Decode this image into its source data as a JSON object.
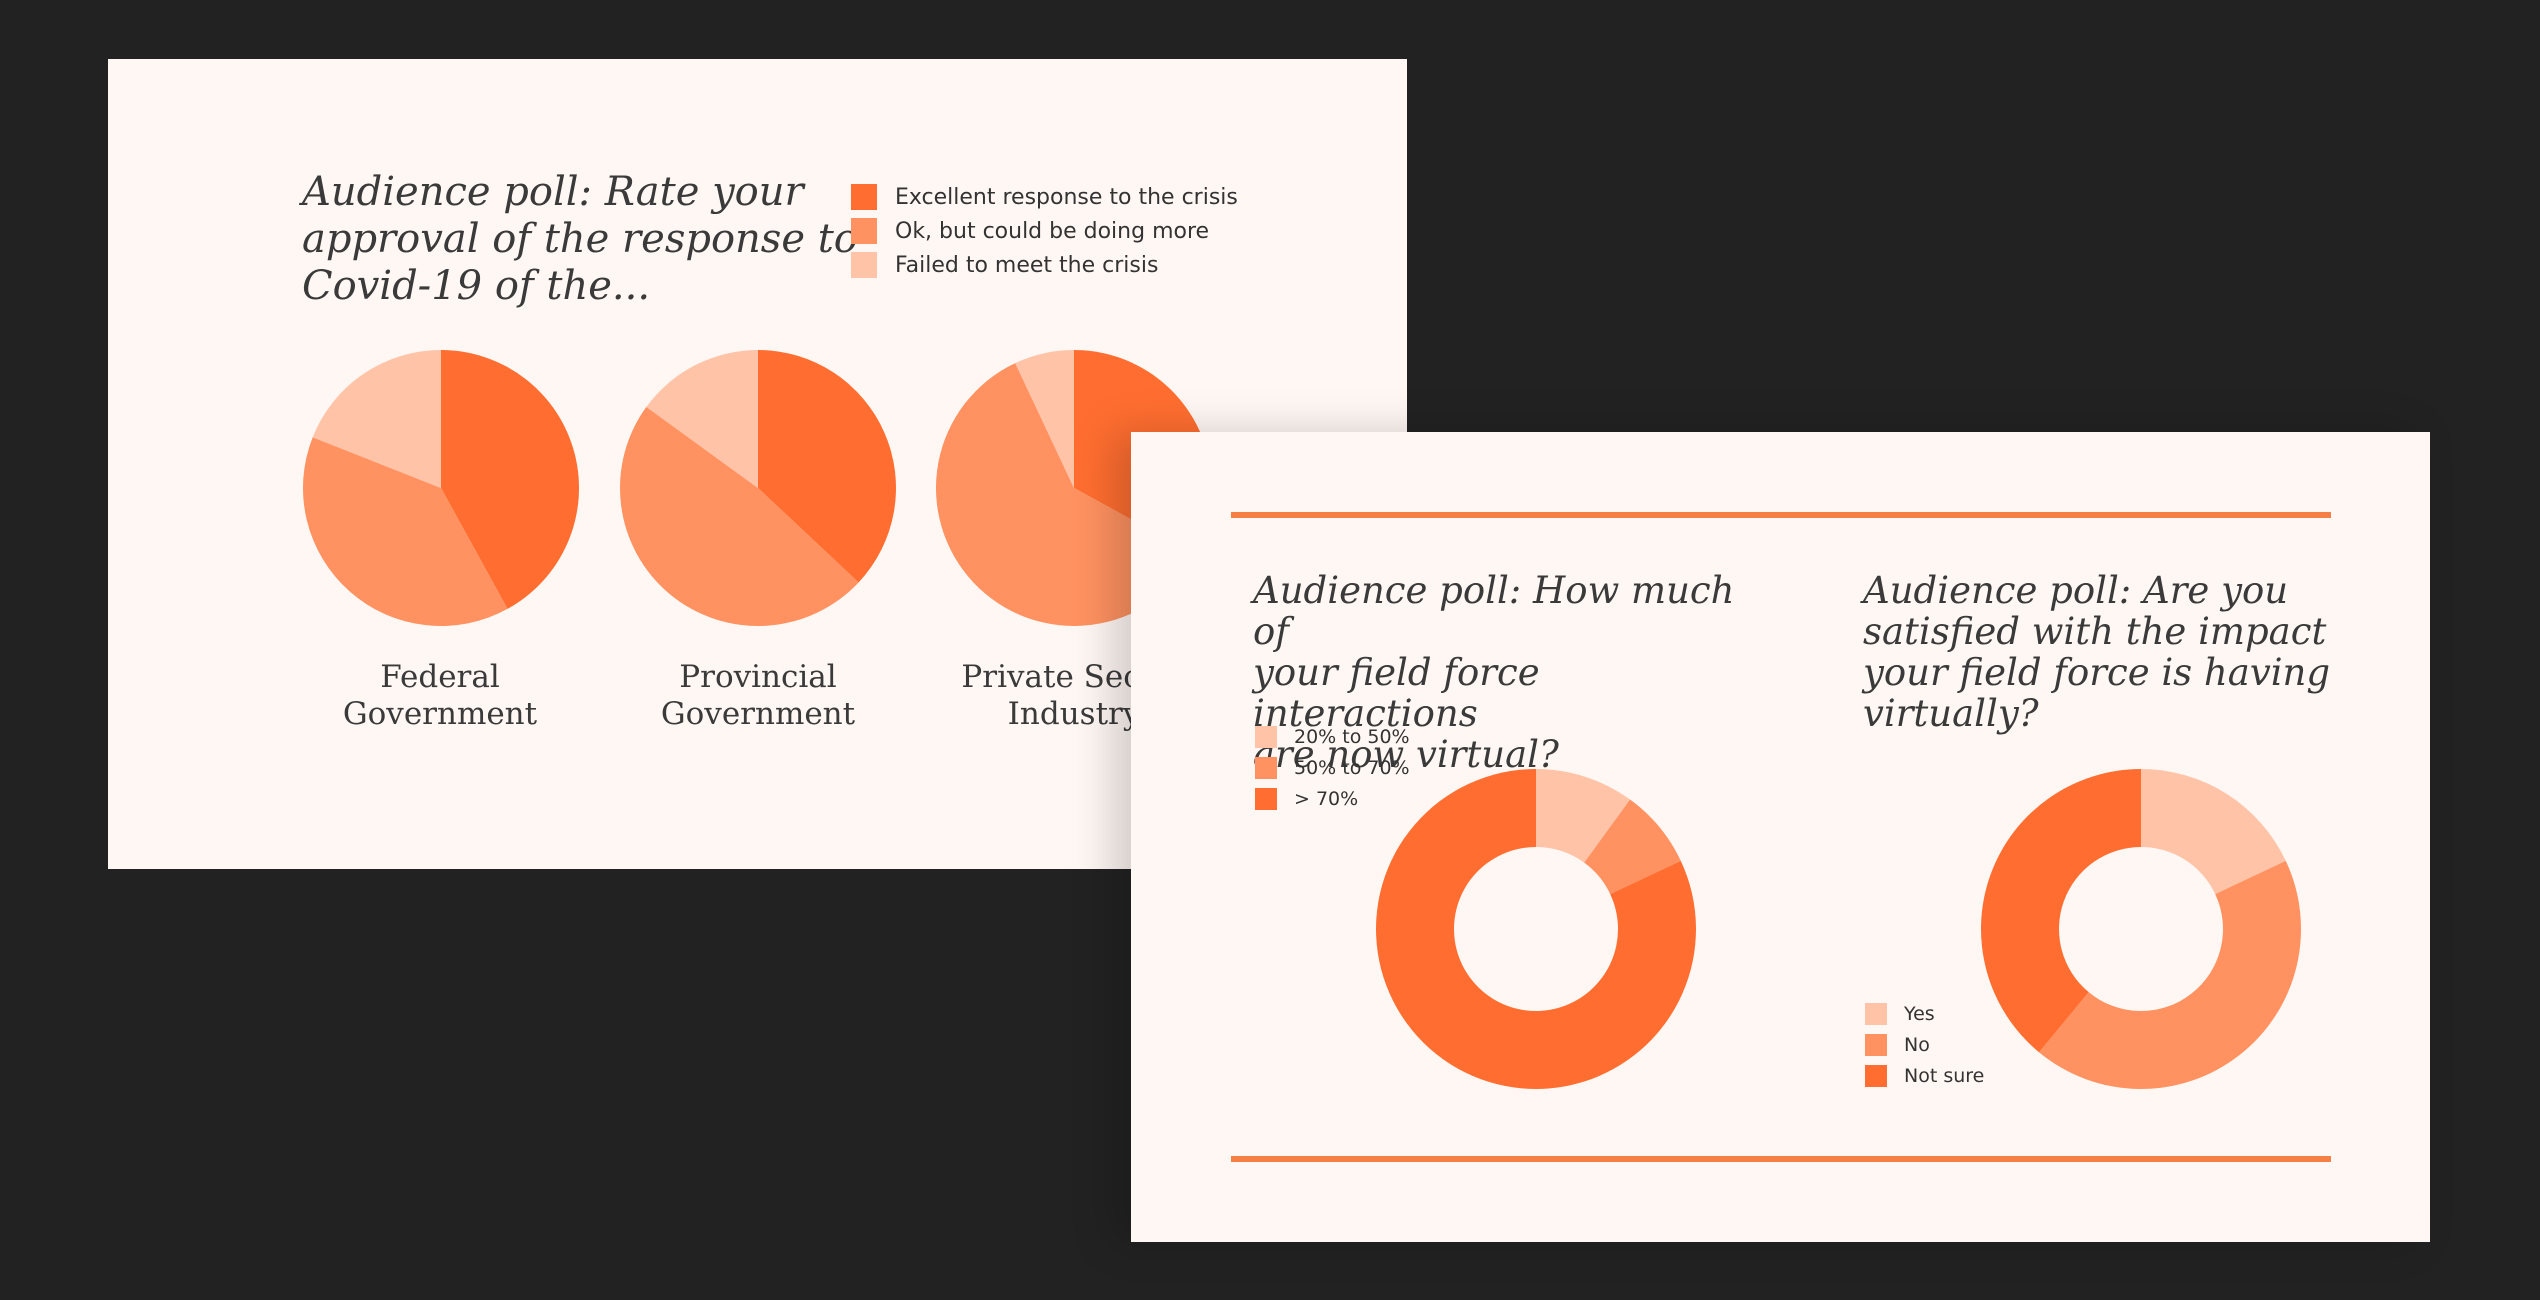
{
  "colors": {
    "dark": "#ff6e30",
    "medium": "#ff9260",
    "light": "#ffc4a8",
    "rule": "#f57f45",
    "text": "#3a3a3a"
  },
  "slide1": {
    "title": "Audience poll: Rate your\napproval of the response to\nCovid-19 of the...",
    "legend": [
      {
        "label": "Excellent response to the crisis",
        "color": "#ff6e30"
      },
      {
        "label": "Ok, but could be doing more",
        "color": "#ff9260"
      },
      {
        "label": "Failed to meet the crisis",
        "color": "#ffc4a8"
      }
    ],
    "pie_labels": [
      "Federal\nGovernment",
      "Provincial\nGovernment",
      "Private Sector\nIndustry"
    ]
  },
  "slide2": {
    "left": {
      "title": "Audience poll: How much of\nyour field force interactions\nare now virtual?",
      "legend": [
        {
          "label": "20% to 50%",
          "color": "#ffc4a8"
        },
        {
          "label": "50% to 70%",
          "color": "#ff9260"
        },
        {
          "label": "> 70%",
          "color": "#ff6e30"
        }
      ]
    },
    "right": {
      "title": "Audience poll: Are you\nsatisfied with the impact\nyour field force is having\nvirtually?",
      "legend": [
        {
          "label": "Yes",
          "color": "#ffc4a8"
        },
        {
          "label": "No",
          "color": "#ff9260"
        },
        {
          "label": "Not sure",
          "color": "#ff6e30"
        }
      ]
    }
  },
  "chart_data": [
    {
      "type": "pie",
      "category": "Federal Government",
      "series": [
        {
          "values": [
            42,
            39,
            19
          ]
        }
      ],
      "labels": [
        "Excellent response to the crisis",
        "Ok, but could be doing more",
        "Failed to meet the crisis"
      ]
    },
    {
      "type": "pie",
      "category": "Provincial Government",
      "series": [
        {
          "values": [
            37,
            48,
            15
          ]
        }
      ],
      "labels": [
        "Excellent response to the crisis",
        "Ok, but could be doing more",
        "Failed to meet the crisis"
      ]
    },
    {
      "type": "pie",
      "category": "Private Sector Industry",
      "series": [
        {
          "values": [
            33,
            60,
            7
          ]
        }
      ],
      "labels": [
        "Excellent response to the crisis",
        "Ok, but could be doing more",
        "Failed to meet the crisis"
      ]
    },
    {
      "type": "donut",
      "labels": [
        "20% to 50%",
        "50% to 70%",
        "> 70%"
      ],
      "values": [
        10,
        8,
        82
      ]
    },
    {
      "type": "donut",
      "labels": [
        "Yes",
        "No",
        "Not sure"
      ],
      "values": [
        18,
        43,
        39
      ]
    }
  ]
}
